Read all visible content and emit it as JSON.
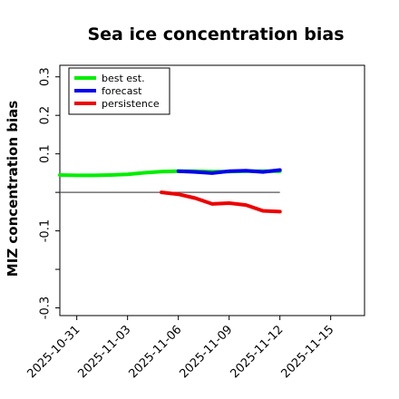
{
  "chart_data": {
    "type": "line",
    "title": "Sea ice concentration bias",
    "xlabel": "",
    "ylabel": "MIZ concentration bias",
    "x_ticks": [
      "2025-10-31",
      "2025-11-03",
      "2025-11-06",
      "2025-11-09",
      "2025-11-12",
      "2025-11-15"
    ],
    "highlight_tick": "2025-11-06",
    "highlight_color": "#228B22",
    "y_ticks": [
      {
        "value": 0.3,
        "label": "0.3"
      },
      {
        "value": 0.2,
        "label": "0.2"
      },
      {
        "value": 0.1,
        "label": "0.1"
      },
      {
        "value": 0.0,
        "label": ""
      },
      {
        "value": -0.1,
        "label": "-0.1"
      },
      {
        "value": -0.2,
        "label": ""
      },
      {
        "value": -0.3,
        "label": "-0.3"
      }
    ],
    "xlim": [
      "2025-10-30",
      "2025-11-17"
    ],
    "ylim": [
      -0.32,
      0.33
    ],
    "zero_line": {
      "value": 0.0,
      "from": "2025-10-30",
      "to": "2025-11-12",
      "color": "#555555"
    },
    "legend": {
      "placement": "top-left"
    },
    "grid": false,
    "series": [
      {
        "name": "best est.",
        "color": "#00ee00",
        "x": [
          "2025-10-30",
          "2025-10-31",
          "2025-11-01",
          "2025-11-02",
          "2025-11-03",
          "2025-11-04",
          "2025-11-05",
          "2025-11-06",
          "2025-11-07",
          "2025-11-08",
          "2025-11-09",
          "2025-11-10",
          "2025-11-11",
          "2025-11-12"
        ],
        "y": [
          0.045,
          0.044,
          0.044,
          0.045,
          0.047,
          0.051,
          0.054,
          0.055,
          0.055,
          0.054,
          0.054,
          0.055,
          0.055,
          0.055
        ]
      },
      {
        "name": "forecast",
        "color": "#0000ee",
        "x": [
          "2025-11-06",
          "2025-11-07",
          "2025-11-08",
          "2025-11-09",
          "2025-11-10",
          "2025-11-11",
          "2025-11-12"
        ],
        "y": [
          0.055,
          0.053,
          0.05,
          0.055,
          0.056,
          0.053,
          0.058
        ]
      },
      {
        "name": "persistence",
        "color": "#ee0000",
        "x": [
          "2025-11-05",
          "2025-11-06",
          "2025-11-07",
          "2025-11-08",
          "2025-11-09",
          "2025-11-10",
          "2025-11-11",
          "2025-11-12"
        ],
        "y": [
          0.0,
          -0.005,
          -0.015,
          -0.03,
          -0.028,
          -0.033,
          -0.048,
          -0.05
        ]
      }
    ]
  }
}
